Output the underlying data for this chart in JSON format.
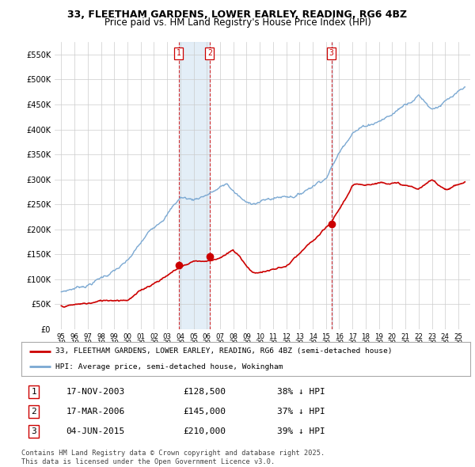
{
  "title": "33, FLEETHAM GARDENS, LOWER EARLEY, READING, RG6 4BZ",
  "subtitle": "Price paid vs. HM Land Registry's House Price Index (HPI)",
  "ylim": [
    0,
    575000
  ],
  "yticks": [
    0,
    50000,
    100000,
    150000,
    200000,
    250000,
    300000,
    350000,
    400000,
    450000,
    500000,
    550000
  ],
  "ytick_labels": [
    "£0",
    "£50K",
    "£100K",
    "£150K",
    "£200K",
    "£250K",
    "£300K",
    "£350K",
    "£400K",
    "£450K",
    "£500K",
    "£550K"
  ],
  "red_color": "#cc0000",
  "blue_color": "#7aa8d2",
  "shade_color": "#d8e8f5",
  "bg_color": "#ffffff",
  "grid_color": "#cccccc",
  "sale_dates": [
    2003.88,
    2006.21,
    2015.42
  ],
  "sale_prices": [
    128500,
    145000,
    210000
  ],
  "sale_labels": [
    "1",
    "2",
    "3"
  ],
  "legend_red": "33, FLEETHAM GARDENS, LOWER EARLEY, READING, RG6 4BZ (semi-detached house)",
  "legend_blue": "HPI: Average price, semi-detached house, Wokingham",
  "table_data": [
    [
      "1",
      "17-NOV-2003",
      "£128,500",
      "38% ↓ HPI"
    ],
    [
      "2",
      "17-MAR-2006",
      "£145,000",
      "37% ↓ HPI"
    ],
    [
      "3",
      "04-JUN-2015",
      "£210,000",
      "39% ↓ HPI"
    ]
  ],
  "footer": "Contains HM Land Registry data © Crown copyright and database right 2025.\nThis data is licensed under the Open Government Licence v3.0.",
  "title_fontsize": 9,
  "subtitle_fontsize": 8.5,
  "tick_fontsize": 7
}
